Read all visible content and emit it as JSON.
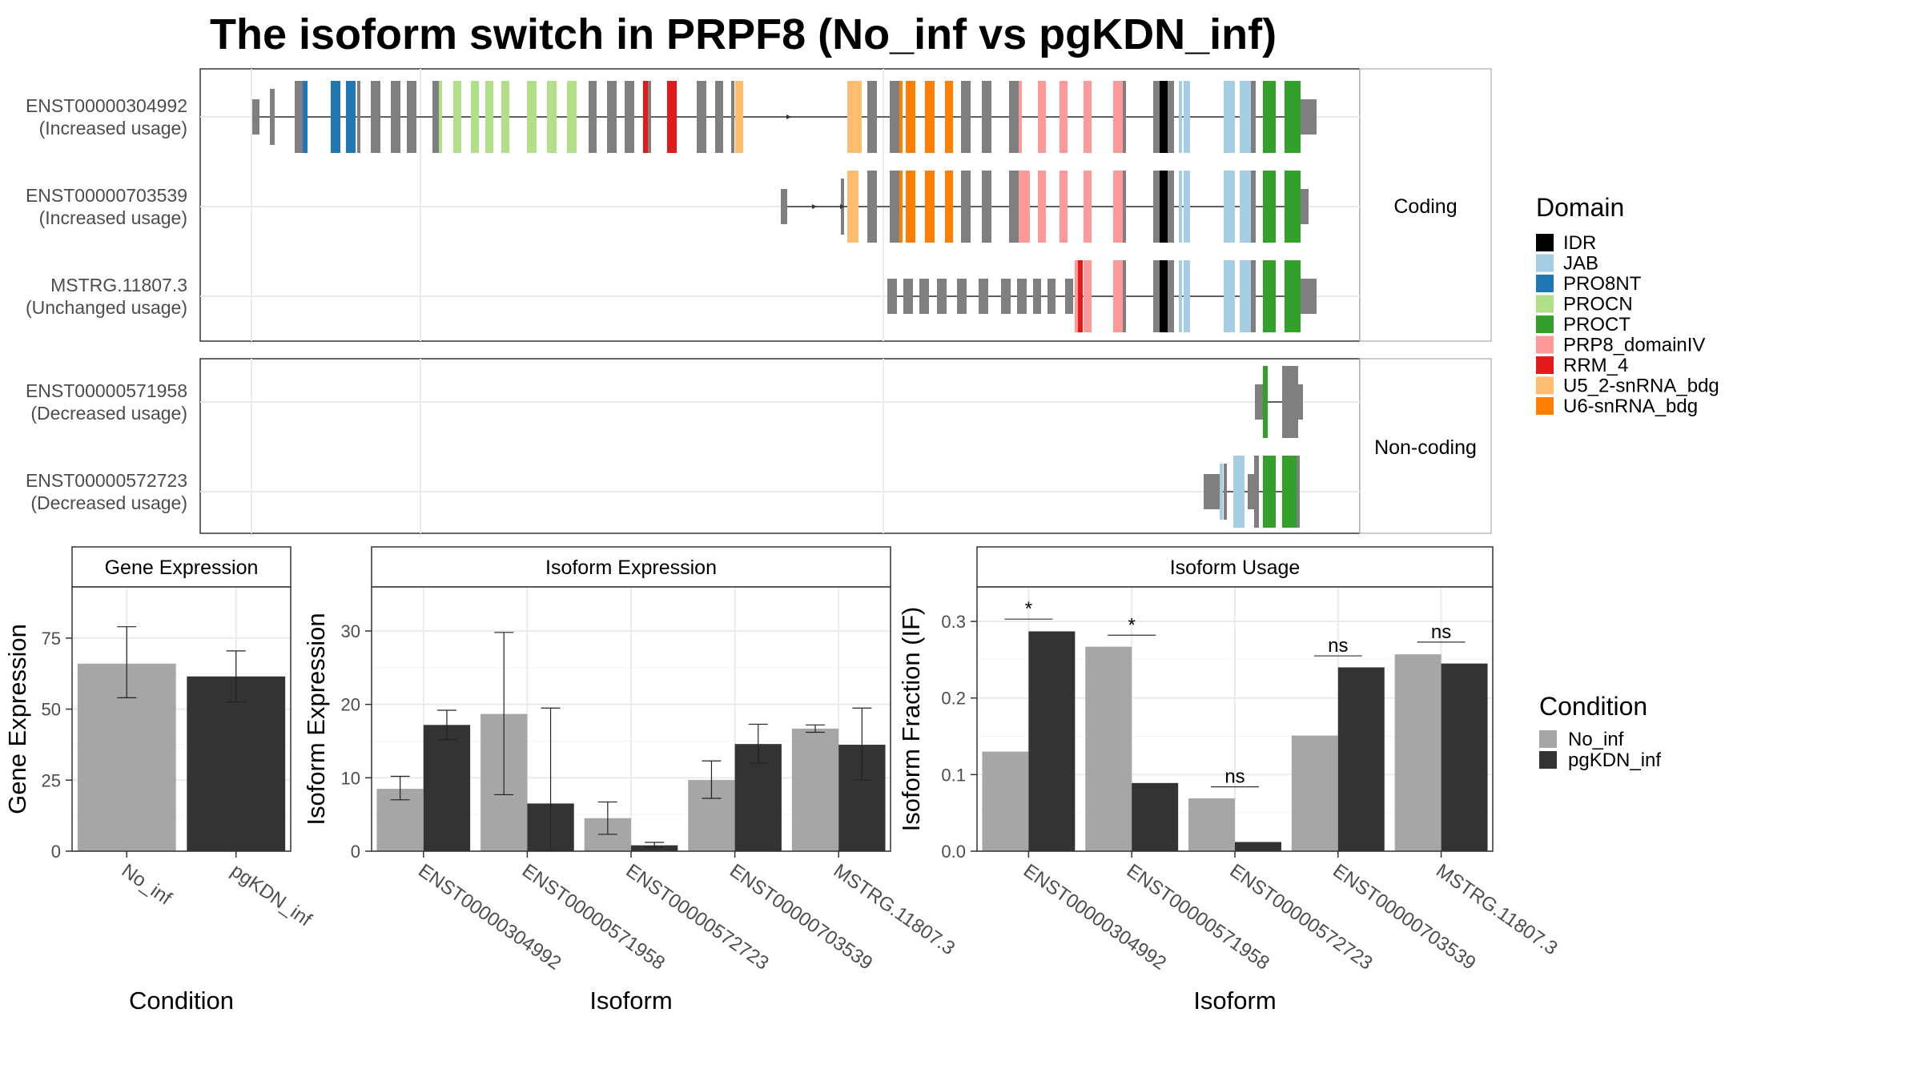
{
  "title": "The isoform switch in PRPF8 (No_inf vs pgKDN_inf)",
  "colors": {
    "No_inf": "#a6a6a6",
    "pgKDN_inf": "#333333",
    "grey_exon": "#7f7f7f",
    "IDR": "#000000",
    "JAB": "#a6cee3",
    "PRO8NT": "#1f78b4",
    "PROCN": "#b2df8a",
    "PROCT": "#33a02c",
    "PRP8_domainIV": "#fb9a99",
    "RRM_4": "#e31a1c",
    "U5_2-snRNA_bdg": "#fdbf6f",
    "U6-snRNA_bdg": "#ff7f00"
  },
  "structure": {
    "coding_strip": "Coding",
    "noncoding_strip": "Non-coding",
    "isoforms": [
      {
        "id": "ENST00000304992",
        "usage": "(Increased usage)",
        "group": "coding"
      },
      {
        "id": "ENST00000703539",
        "usage": "(Increased usage)",
        "group": "coding"
      },
      {
        "id": "MSTRG.11807.3",
        "usage": "(Unchanged usage)",
        "group": "coding"
      },
      {
        "id": "ENST00000571958",
        "usage": "(Decreased usage)",
        "group": "noncoding"
      },
      {
        "id": "ENST00000572723",
        "usage": "(Decreased usage)",
        "group": "noncoding"
      }
    ]
  },
  "domain_legend": {
    "title": "Domain",
    "items": [
      "IDR",
      "JAB",
      "PRO8NT",
      "PROCN",
      "PROCT",
      "PRP8_domainIV",
      "RRM_4",
      "U5_2-snRNA_bdg",
      "U6-snRNA_bdg"
    ]
  },
  "condition_legend": {
    "title": "Condition",
    "items": [
      "No_inf",
      "pgKDN_inf"
    ]
  },
  "chart_data": [
    {
      "type": "bar",
      "panel": "Gene Expression",
      "categories": [
        "No_inf",
        "pgKDN_inf"
      ],
      "values": [
        66,
        61.5
      ],
      "error_low": [
        54,
        52.5
      ],
      "error_high": [
        79,
        70.5
      ],
      "xlabel": "Condition",
      "ylabel": "Gene Expression",
      "ylim": [
        0,
        93
      ],
      "yticks": [
        0,
        25,
        50,
        75
      ],
      "grid": true
    },
    {
      "type": "bar",
      "panel": "Isoform Expression",
      "categories": [
        "ENST00000304992",
        "ENST00000571958",
        "ENST00000572723",
        "ENST00000703539",
        "MSTRG.11807.3"
      ],
      "series": [
        {
          "name": "No_inf",
          "values": [
            8.5,
            18.7,
            4.5,
            9.7,
            16.7
          ],
          "error_low": [
            7.0,
            7.7,
            2.3,
            7.2,
            16.2
          ],
          "error_high": [
            10.2,
            29.8,
            6.7,
            12.3,
            17.2
          ]
        },
        {
          "name": "pgKDN_inf",
          "values": [
            17.2,
            6.5,
            0.8,
            14.6,
            14.5
          ],
          "error_low": [
            15.2,
            0.1,
            0.5,
            12.0,
            9.7
          ],
          "error_high": [
            19.2,
            19.5,
            1.2,
            17.3,
            19.5
          ]
        }
      ],
      "xlabel": "Isoform",
      "ylabel": "Isoform Expression",
      "ylim": [
        0,
        36
      ],
      "yticks": [
        0,
        10,
        20,
        30
      ],
      "grid": true
    },
    {
      "type": "bar",
      "panel": "Isoform Usage",
      "categories": [
        "ENST00000304992",
        "ENST00000571958",
        "ENST00000572723",
        "ENST00000703539",
        "MSTRG.11807.3"
      ],
      "series": [
        {
          "name": "No_inf",
          "values": [
            0.13,
            0.267,
            0.069,
            0.151,
            0.257
          ]
        },
        {
          "name": "pgKDN_inf",
          "values": [
            0.287,
            0.089,
            0.012,
            0.24,
            0.245
          ]
        }
      ],
      "significance": [
        "*",
        "*",
        "ns",
        "ns",
        "ns"
      ],
      "significance_y": [
        0.303,
        0.282,
        0.084,
        0.255,
        0.273
      ],
      "xlabel": "Isoform",
      "ylabel": "Isoform Fraction (IF)",
      "ylim": [
        0,
        0.345
      ],
      "yticks": [
        0.0,
        0.1,
        0.2,
        0.3
      ],
      "grid": true
    }
  ]
}
